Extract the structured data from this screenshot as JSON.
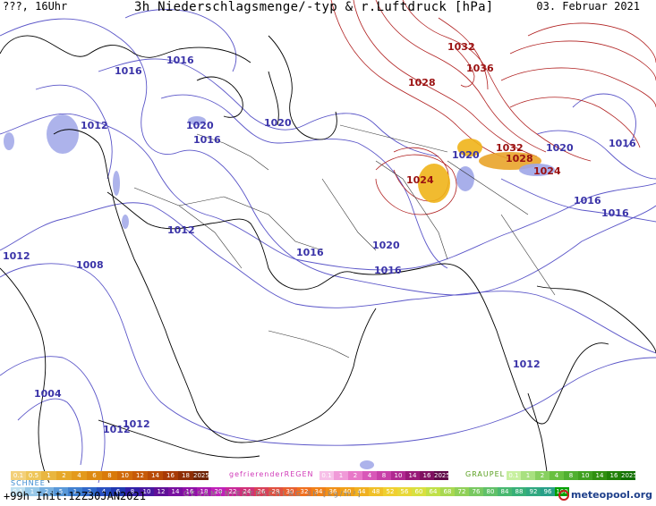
{
  "header": {
    "left": "???, 16Uhr",
    "title": "3h Niederschlagsmenge/-typ & r.Luftdruck [hPa]",
    "date": "03. Februar 2021"
  },
  "isobar_labels": [
    {
      "text": "1016",
      "kind": "low"
    },
    {
      "text": "1016",
      "kind": "low"
    },
    {
      "text": "1012",
      "kind": "low"
    },
    {
      "text": "1020",
      "kind": "low"
    },
    {
      "text": "1016",
      "kind": "low"
    },
    {
      "text": "1020",
      "kind": "low"
    },
    {
      "text": "1032",
      "kind": "high"
    },
    {
      "text": "1036",
      "kind": "high"
    },
    {
      "text": "1028",
      "kind": "high"
    },
    {
      "text": "1032",
      "kind": "high"
    },
    {
      "text": "1028",
      "kind": "high"
    },
    {
      "text": "1020",
      "kind": "low"
    },
    {
      "text": "1024",
      "kind": "high"
    },
    {
      "text": "1024",
      "kind": "high"
    },
    {
      "text": "1020",
      "kind": "low"
    },
    {
      "text": "1016",
      "kind": "low"
    },
    {
      "text": "1016",
      "kind": "low"
    },
    {
      "text": "1016",
      "kind": "low"
    },
    {
      "text": "1012",
      "kind": "low"
    },
    {
      "text": "1020",
      "kind": "low"
    },
    {
      "text": "1016",
      "kind": "low"
    },
    {
      "text": "1016",
      "kind": "low"
    },
    {
      "text": "1012",
      "kind": "low"
    },
    {
      "text": "1008",
      "kind": "low"
    },
    {
      "text": "1012",
      "kind": "low"
    },
    {
      "text": "1004",
      "kind": "low"
    },
    {
      "text": "1012",
      "kind": "low"
    },
    {
      "text": "1012",
      "kind": "low"
    }
  ],
  "legend": {
    "rain_values": [
      "0.1",
      "0.5",
      "1",
      "2",
      "4",
      "6",
      "8",
      "10",
      "12",
      "14",
      "16",
      "18",
      "2025+"
    ],
    "rain_colors": [
      "#f3d07a",
      "#eec65a",
      "#e9b640",
      "#e6a82a",
      "#e39a1c",
      "#dd8a12",
      "#d97a0a",
      "#d06a0a",
      "#c75a08",
      "#b84a06",
      "#a83a06",
      "#8e2e05",
      "#6e2204"
    ],
    "freezing_label": "gefrierenderREGEN",
    "freezing_values": [
      "0.1",
      "1",
      "2",
      "4",
      "8",
      "10",
      "14",
      "16",
      "2025+"
    ],
    "freezing_colors": [
      "#f7c0e8",
      "#f09ad8",
      "#e878c8",
      "#d858b8",
      "#c840a8",
      "#b02890",
      "#981878",
      "#801060",
      "#600848"
    ],
    "graupel_label": "GRAUPEL",
    "graupel_values": [
      "0.1",
      "1",
      "2",
      "4",
      "8",
      "10",
      "14",
      "16",
      "2025+"
    ],
    "graupel_colors": [
      "#c8f0a0",
      "#a8e080",
      "#88d060",
      "#68c040",
      "#50b030",
      "#40a020",
      "#309010",
      "#208008",
      "#107000"
    ],
    "snow_label": "SCHNEE",
    "total_values": [
      "0.1",
      "1",
      "2",
      "5",
      "1",
      "2",
      "4",
      "6",
      "8",
      "10",
      "12",
      "14",
      "16",
      "18",
      "20",
      "22",
      "24",
      "26",
      "28",
      "30",
      "32",
      "34",
      "36",
      "40",
      "44",
      "48",
      "52",
      "56",
      "60",
      "64",
      "68",
      "72",
      "76",
      "80",
      "84",
      "88",
      "92",
      "96",
      "100"
    ],
    "total_colors": [
      "#bfe0f0",
      "#98c8e8",
      "#78b0e0",
      "#5898d8",
      "#4080d0",
      "#3068c8",
      "#2850c0",
      "#2038b0",
      "#3020a8",
      "#4818a0",
      "#601098",
      "#7810a0",
      "#9010a8",
      "#a818b0",
      "#c020b8",
      "#c82898",
      "#d03078",
      "#d84058",
      "#e05040",
      "#e86030",
      "#f07020",
      "#f08018",
      "#f09018",
      "#f0a018",
      "#f0b020",
      "#f0c028",
      "#f0d030",
      "#e8d838",
      "#d8e040",
      "#c0e048",
      "#a8d850",
      "#90d058",
      "#78c860",
      "#60c068",
      "#48b870",
      "#38b078",
      "#30a880",
      "#28a088",
      "#00a000"
    ],
    "total_label": "GESAMTNIEDERSCHLAG 3h [kg/m²]"
  },
  "footer": {
    "init": "+99h Init:12Z30JAN2021",
    "logo": "meteopool.org"
  },
  "colors": {
    "isobar_low": "#5a55c8",
    "isobar_high": "#b02020",
    "coast": "#000000",
    "border": "#333333"
  }
}
